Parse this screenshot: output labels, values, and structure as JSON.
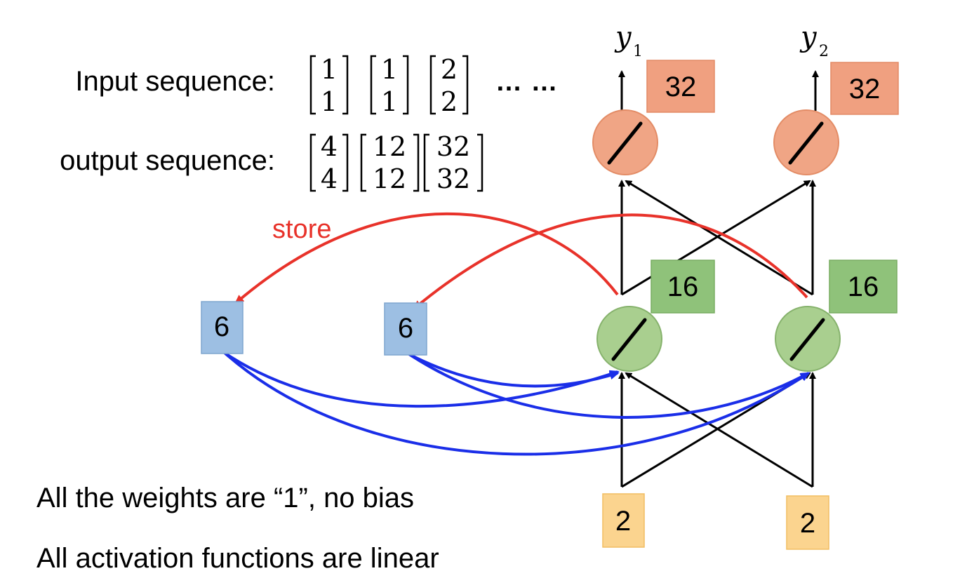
{
  "labels": {
    "input_sequence": "Input sequence:",
    "output_sequence": "output sequence:",
    "ellipsis": "…  …",
    "store": "store",
    "note_weights": "All the weights are “1”, no bias",
    "note_activation": "All activation functions are linear"
  },
  "input_vectors": [
    {
      "top": "1",
      "bottom": "1"
    },
    {
      "top": "1",
      "bottom": "1"
    },
    {
      "top": "2",
      "bottom": "2"
    }
  ],
  "output_vectors": [
    {
      "top": "4",
      "bottom": "4"
    },
    {
      "top": "12",
      "bottom": "12"
    },
    {
      "top": "32",
      "bottom": "32"
    }
  ],
  "network": {
    "outputs": [
      {
        "name": "y",
        "subscript": "1"
      },
      {
        "name": "y",
        "subscript": "2"
      }
    ],
    "output_values": [
      "32",
      "32"
    ],
    "hidden_values": [
      "16",
      "16"
    ],
    "memory_values": [
      "6",
      "6"
    ],
    "input_values": [
      "2",
      "2"
    ]
  },
  "colors": {
    "input_box": "#fbd48f",
    "hidden_node": "#a9cf8f",
    "hidden_box": "#8fc27a",
    "output_node": "#f0a585",
    "output_box": "#f0a080",
    "memory_box": "#9dbfe3",
    "store_arrow": "#e8322a",
    "memory_arrow": "#1a2ee8"
  }
}
